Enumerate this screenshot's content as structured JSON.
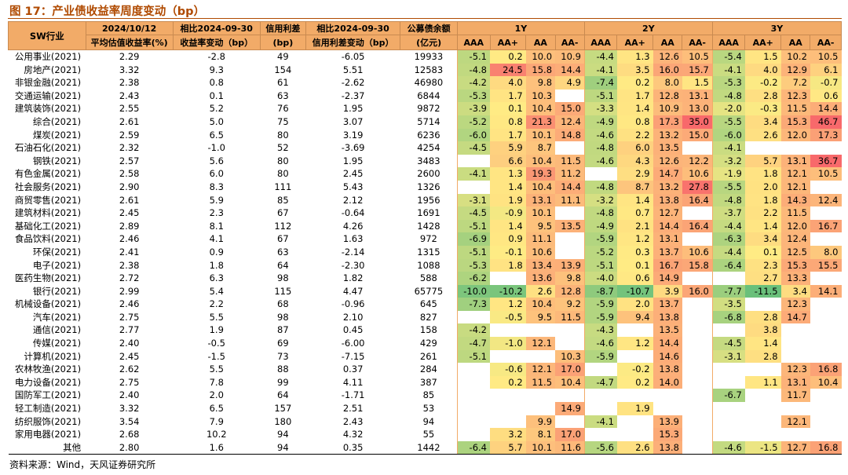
{
  "title": "图 17：产业债收益率周度变动（bp）",
  "source": "资料来源：Wind，天风证券研究所",
  "header": {
    "sw": "SW行业",
    "date_top": "2024/10/12",
    "date_bottom": "平均估值收益率(%)",
    "chg_top": "相比2024-09-30",
    "chg_bottom": "收益率变动（bp）",
    "spread_top": "信用利差",
    "spread_bottom": "(bp)",
    "spread_chg_top": "相比2024-09-30",
    "spread_chg_bottom": "信用利差变动（bp）",
    "bal_top": "公募债余额",
    "bal_bottom": "(亿元)",
    "tenors": [
      "1Y",
      "2Y",
      "3Y"
    ],
    "ratings": [
      "AAA",
      "AA+",
      "AA",
      "AA-"
    ]
  },
  "rows": [
    {
      "name": "公用事业(2021)",
      "yld": "2.29",
      "chg": "-2.8",
      "spread": "49",
      "schg": "-6.05",
      "bal": "19933",
      "y1": [
        "-5.1",
        "0.2",
        "10.0",
        "10.9"
      ],
      "y2": [
        "-4.4",
        "1.3",
        "12.6",
        "10.5"
      ],
      "y3": [
        "-5.4",
        "1.5",
        "10.2",
        "10.5"
      ]
    },
    {
      "name": "房地产(2021)",
      "yld": "3.32",
      "chg": "9.3",
      "spread": "154",
      "schg": "5.51",
      "bal": "12583",
      "y1": [
        "-4.8",
        "24.5",
        "15.8",
        "14.4"
      ],
      "y2": [
        "-4.1",
        "3.5",
        "16.0",
        "15.7"
      ],
      "y3": [
        "-4.1",
        "4.0",
        "12.9",
        "6.1"
      ]
    },
    {
      "name": "非银金融(2021)",
      "yld": "2.38",
      "chg": "0.8",
      "spread": "61",
      "schg": "-2.62",
      "bal": "46980",
      "y1": [
        "-4.2",
        "4.0",
        "9.8",
        "4.9"
      ],
      "y2": [
        "-7.4",
        "0.2",
        "8.0",
        "1.5"
      ],
      "y3": [
        "-5.3",
        "-0.2",
        "7.2",
        "-0.7"
      ]
    },
    {
      "name": "交通运输(2021)",
      "yld": "2.43",
      "chg": "0.1",
      "spread": "63",
      "schg": "-2.37",
      "bal": "6844",
      "y1": [
        "-5.3",
        "1.7",
        "10.3",
        ""
      ],
      "y2": [
        "-5.1",
        "1.7",
        "12.8",
        "13.1"
      ],
      "y3": [
        "-4.8",
        "2.8",
        "12.3",
        "0.6"
      ]
    },
    {
      "name": "建筑装饰(2021)",
      "yld": "2.55",
      "chg": "5.2",
      "spread": "76",
      "schg": "1.95",
      "bal": "9872",
      "y1": [
        "-3.9",
        "0.1",
        "10.4",
        "15.0"
      ],
      "y2": [
        "-3.3",
        "1.4",
        "10.9",
        "13.0"
      ],
      "y3": [
        "-2.0",
        "-0.3",
        "11.5",
        "14.4"
      ]
    },
    {
      "name": "综合(2021)",
      "yld": "2.61",
      "chg": "5.0",
      "spread": "75",
      "schg": "3.07",
      "bal": "5714",
      "y1": [
        "-5.2",
        "0.8",
        "21.3",
        "12.4"
      ],
      "y2": [
        "-4.9",
        "0.8",
        "17.3",
        "35.0"
      ],
      "y3": [
        "-5.5",
        "3.4",
        "15.3",
        "46.7"
      ]
    },
    {
      "name": "煤炭(2021)",
      "yld": "2.59",
      "chg": "6.5",
      "spread": "80",
      "schg": "3.19",
      "bal": "6236",
      "y1": [
        "-6.0",
        "1.7",
        "10.1",
        "14.8"
      ],
      "y2": [
        "-4.6",
        "2.2",
        "13.2",
        "15.0"
      ],
      "y3": [
        "-6.0",
        "2.6",
        "12.0",
        "17.3"
      ]
    },
    {
      "name": "石油石化(2021)",
      "yld": "2.32",
      "chg": "-1.0",
      "spread": "52",
      "schg": "-3.69",
      "bal": "4254",
      "y1": [
        "-4.5",
        "5.9",
        "8.7",
        ""
      ],
      "y2": [
        "-4.8",
        "6.0",
        "13.5",
        ""
      ],
      "y3": [
        "-4.1",
        "",
        "",
        ""
      ]
    },
    {
      "name": "钢铁(2021)",
      "yld": "2.57",
      "chg": "5.6",
      "spread": "80",
      "schg": "1.95",
      "bal": "3483",
      "y1": [
        "",
        "6.6",
        "10.4",
        "11.5"
      ],
      "y2": [
        "-4.6",
        "4.3",
        "12.6",
        "12.2"
      ],
      "y3": [
        "-3.2",
        "5.7",
        "13.1",
        "36.7"
      ]
    },
    {
      "name": "有色金属(2021)",
      "yld": "2.58",
      "chg": "6.0",
      "spread": "80",
      "schg": "2.45",
      "bal": "2600",
      "y1": [
        "-4.1",
        "1.3",
        "19.3",
        "11.2"
      ],
      "y2": [
        "",
        "2.9",
        "14.7",
        "10.6"
      ],
      "y3": [
        "-1.9",
        "1.8",
        "12.1",
        "10.5"
      ]
    },
    {
      "name": "社会服务(2021)",
      "yld": "2.90",
      "chg": "8.3",
      "spread": "111",
      "schg": "5.43",
      "bal": "1326",
      "y1": [
        "",
        "1.4",
        "10.4",
        "14.4"
      ],
      "y2": [
        "-4.8",
        "8.7",
        "13.2",
        "27.8"
      ],
      "y3": [
        "-5.5",
        "2.0",
        "12.1",
        ""
      ]
    },
    {
      "name": "商贸零售(2021)",
      "yld": "2.61",
      "chg": "5.9",
      "spread": "85",
      "schg": "2.12",
      "bal": "1956",
      "y1": [
        "-3.1",
        "1.9",
        "13.1",
        "11.1"
      ],
      "y2": [
        "-3.2",
        "1.4",
        "13.8",
        "16.4"
      ],
      "y3": [
        "-4.8",
        "1.8",
        "14.3",
        "12.4"
      ]
    },
    {
      "name": "建筑材料(2021)",
      "yld": "2.45",
      "chg": "2.3",
      "spread": "67",
      "schg": "-0.64",
      "bal": "1691",
      "y1": [
        "-4.5",
        "-0.9",
        "10.1",
        ""
      ],
      "y2": [
        "-4.8",
        "0.7",
        "12.7",
        ""
      ],
      "y3": [
        "-3.7",
        "2.2",
        "11.5",
        ""
      ]
    },
    {
      "name": "基础化工(2021)",
      "yld": "2.89",
      "chg": "8.1",
      "spread": "112",
      "schg": "4.26",
      "bal": "1428",
      "y1": [
        "-5.1",
        "1.4",
        "9.5",
        "13.5"
      ],
      "y2": [
        "-4.9",
        "2.1",
        "14.4",
        "16.4"
      ],
      "y3": [
        "-4.4",
        "1.4",
        "12.0",
        "16.7"
      ]
    },
    {
      "name": "食品饮料(2021)",
      "yld": "2.46",
      "chg": "4.1",
      "spread": "67",
      "schg": "1.63",
      "bal": "972",
      "y1": [
        "-6.9",
        "0.9",
        "11.1",
        ""
      ],
      "y2": [
        "-5.9",
        "1.2",
        "13.1",
        ""
      ],
      "y3": [
        "-6.3",
        "3.4",
        "12.4",
        ""
      ]
    },
    {
      "name": "环保(2021)",
      "yld": "2.41",
      "chg": "0.9",
      "spread": "63",
      "schg": "-2.14",
      "bal": "1315",
      "y1": [
        "-5.1",
        "-0.1",
        "10.6",
        ""
      ],
      "y2": [
        "-5.2",
        "0.3",
        "13.7",
        "10.6"
      ],
      "y3": [
        "-4.4",
        "0.1",
        "12.5",
        "8.0"
      ]
    },
    {
      "name": "电子(2021)",
      "yld": "2.38",
      "chg": "1.8",
      "spread": "64",
      "schg": "-2.30",
      "bal": "1088",
      "y1": [
        "-5.3",
        "1.8",
        "13.4",
        "13.9"
      ],
      "y2": [
        "-5.1",
        "0.1",
        "16.7",
        "15.8"
      ],
      "y3": [
        "-6.4",
        "2.3",
        "15.3",
        "15.5"
      ]
    },
    {
      "name": "医药生物(2021)",
      "yld": "2.72",
      "chg": "6.3",
      "spread": "98",
      "schg": "1.82",
      "bal": "588",
      "y1": [
        "-6.2",
        "",
        "13.6",
        "9.8"
      ],
      "y2": [
        "-4.0",
        "0.6",
        "14.9",
        ""
      ],
      "y3": [
        "",
        "2.7",
        "13.3",
        ""
      ]
    },
    {
      "name": "银行(2021)",
      "yld": "2.99",
      "chg": "5.4",
      "spread": "115",
      "schg": "4.47",
      "bal": "65775",
      "y1": [
        "-10.0",
        "-10.2",
        "2.6",
        "12.8"
      ],
      "y2": [
        "-8.7",
        "-10.7",
        "3.9",
        "16.0"
      ],
      "y3": [
        "-7.7",
        "-11.5",
        "3.4",
        "14.1"
      ]
    },
    {
      "name": "机械设备(2021)",
      "yld": "2.46",
      "chg": "2.2",
      "spread": "68",
      "schg": "-0.96",
      "bal": "645",
      "y1": [
        "-7.3",
        "1.2",
        "10.4",
        "9.2"
      ],
      "y2": [
        "-5.9",
        "2.0",
        "13.7",
        ""
      ],
      "y3": [
        "-3.5",
        "",
        "12.3",
        ""
      ]
    },
    {
      "name": "汽车(2021)",
      "yld": "2.75",
      "chg": "5.5",
      "spread": "98",
      "schg": "2.10",
      "bal": "827",
      "y1": [
        "",
        "-0.5",
        "9.5",
        "11.5"
      ],
      "y2": [
        "-5.9",
        "9.4",
        "13.8",
        ""
      ],
      "y3": [
        "-6.8",
        "2.8",
        "14.7",
        ""
      ]
    },
    {
      "name": "通信(2021)",
      "yld": "2.77",
      "chg": "1.9",
      "spread": "87",
      "schg": "0.45",
      "bal": "158",
      "y1": [
        "-4.2",
        "",
        "",
        ""
      ],
      "y2": [
        "-4.3",
        "",
        "13.5",
        ""
      ],
      "y3": [
        "",
        "3.8",
        "",
        ""
      ]
    },
    {
      "name": "传媒(2021)",
      "yld": "2.40",
      "chg": "-0.5",
      "spread": "69",
      "schg": "-6.00",
      "bal": "429",
      "y1": [
        "-4.7",
        "-1.0",
        "12.1",
        ""
      ],
      "y2": [
        "-4.6",
        "1.2",
        "14.4",
        ""
      ],
      "y3": [
        "-4.5",
        "1.4",
        "",
        ""
      ]
    },
    {
      "name": "计算机(2021)",
      "yld": "2.45",
      "chg": "-1.5",
      "spread": "73",
      "schg": "-7.15",
      "bal": "261",
      "y1": [
        "-5.1",
        "",
        "",
        "10.3"
      ],
      "y2": [
        "-5.9",
        "",
        "14.6",
        ""
      ],
      "y3": [
        "-3.1",
        "2.8",
        "",
        ""
      ]
    },
    {
      "name": "农林牧渔(2021)",
      "yld": "2.62",
      "chg": "5.5",
      "spread": "88",
      "schg": "0.37",
      "bal": "284",
      "y1": [
        "",
        "-0.6",
        "12.1",
        "17.0"
      ],
      "y2": [
        "",
        "-0.2",
        "13.8",
        ""
      ],
      "y3": [
        "",
        "",
        "12.3",
        "16.8"
      ]
    },
    {
      "name": "电力设备(2021)",
      "yld": "2.75",
      "chg": "7.8",
      "spread": "99",
      "schg": "4.11",
      "bal": "387",
      "y1": [
        "",
        "0.2",
        "11.5",
        "10.4"
      ],
      "y2": [
        "-4.7",
        "0.2",
        "14.0",
        ""
      ],
      "y3": [
        "",
        "1.1",
        "13.1",
        "10.4"
      ]
    },
    {
      "name": "国防军工(2021)",
      "yld": "2.40",
      "chg": "2.0",
      "spread": "64",
      "schg": "-1.71",
      "bal": "85",
      "y1": [
        "",
        "",
        "",
        ""
      ],
      "y2": [
        "",
        "",
        "",
        ""
      ],
      "y3": [
        "-6.7",
        "",
        "11.7",
        ""
      ]
    },
    {
      "name": "轻工制造(2021)",
      "yld": "3.32",
      "chg": "6.5",
      "spread": "157",
      "schg": "2.51",
      "bal": "53",
      "y1": [
        "",
        "",
        "",
        "14.9"
      ],
      "y2": [
        "",
        "1.9",
        "",
        ""
      ],
      "y3": [
        "",
        "",
        "",
        ""
      ]
    },
    {
      "name": "纺织服饰(2021)",
      "yld": "3.54",
      "chg": "7.9",
      "spread": "180",
      "schg": "2.43",
      "bal": "94",
      "y1": [
        "",
        "",
        "9.9",
        ""
      ],
      "y2": [
        "-4.1",
        "",
        "13.9",
        ""
      ],
      "y3": [
        "",
        "",
        "12.1",
        ""
      ]
    },
    {
      "name": "家用电器(2021)",
      "yld": "2.68",
      "chg": "10.2",
      "spread": "94",
      "schg": "4.32",
      "bal": "55",
      "y1": [
        "",
        "3.2",
        "8.1",
        "17.0"
      ],
      "y2": [
        "",
        "",
        "15.3",
        ""
      ],
      "y3": [
        "",
        "",
        "",
        ""
      ]
    },
    {
      "name": "其他",
      "yld": "2.80",
      "chg": "1.6",
      "spread": "94",
      "schg": "0.35",
      "bal": "1442",
      "y1": [
        "-6.4",
        "5.7",
        "10.1",
        "11.6"
      ],
      "y2": [
        "-5.6",
        "2.6",
        "13.8",
        ""
      ],
      "y3": [
        "-4.6",
        "-1.5",
        "12.7",
        "16.8"
      ]
    }
  ],
  "colors": {
    "header": "#f2ab68",
    "title": "#b04a00",
    "scale_low": "#63be7b",
    "scale_mid": "#ffeb84",
    "scale_high": "#f8696b"
  }
}
